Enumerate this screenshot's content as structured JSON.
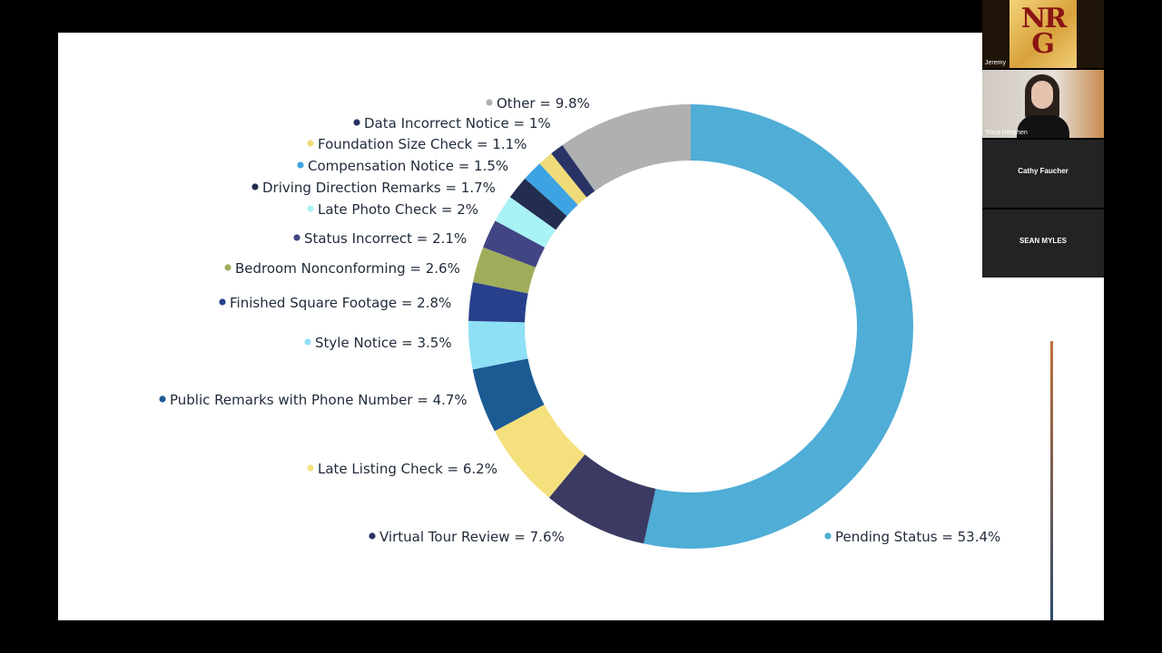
{
  "chart_data": {
    "type": "pie",
    "style": "donut",
    "title": "",
    "slices": [
      {
        "label": "Pending Status = 53.4%",
        "value": 53.4,
        "color": "#4fadd6",
        "dot": "#4fadd6"
      },
      {
        "label": "Virtual Tour Review = 7.6%",
        "value": 7.6,
        "color": "#3b3a63",
        "dot": "#2b3564"
      },
      {
        "label": "Late Listing Check = 6.2%",
        "value": 6.2,
        "color": "#f5e07e",
        "dot": "#f5e07e"
      },
      {
        "label": "Public Remarks with Phone Number = 4.7%",
        "value": 4.7,
        "color": "#1c5a93",
        "dot": "#1c5a93"
      },
      {
        "label": "Style Notice = 3.5%",
        "value": 3.5,
        "color": "#8ee0f5",
        "dot": "#8ee0f5"
      },
      {
        "label": "Finished Square Footage = 2.8%",
        "value": 2.8,
        "color": "#283f8c",
        "dot": "#283f8c"
      },
      {
        "label": "Bedroom Nonconforming = 2.6%",
        "value": 2.6,
        "color": "#9fad5b",
        "dot": "#9fad5b"
      },
      {
        "label": "Status Incorrect = 2.1%",
        "value": 2.1,
        "color": "#424584",
        "dot": "#424584"
      },
      {
        "label": "Late Photo Check = 2%",
        "value": 2.0,
        "color": "#a9f2f6",
        "dot": "#a9f2f6"
      },
      {
        "label": "Driving Direction Remarks = 1.7%",
        "value": 1.7,
        "color": "#222d4f",
        "dot": "#222d4f"
      },
      {
        "label": "Compensation Notice = 1.5%",
        "value": 1.5,
        "color": "#3da3e3",
        "dot": "#3da3e3"
      },
      {
        "label": "Foundation Size Check = 1.1%",
        "value": 1.1,
        "color": "#efdc78",
        "dot": "#efdc78"
      },
      {
        "label": "Data Incorrect Notice = 1%",
        "value": 1.0,
        "color": "#2a3365",
        "dot": "#2a3365"
      },
      {
        "label": "Other = 9.8%",
        "value": 9.8,
        "color": "#aeb0b1",
        "dot": "#aeb0b1"
      }
    ],
    "legend": "labels-around"
  },
  "participants": {
    "logo_text_top": "NR",
    "logo_text_bottom": "G",
    "jeremy": "Jeremy",
    "tricia": "Tricia Henchen",
    "cathy": "Cathy Faucher",
    "sean": "SEAN MYLES"
  }
}
